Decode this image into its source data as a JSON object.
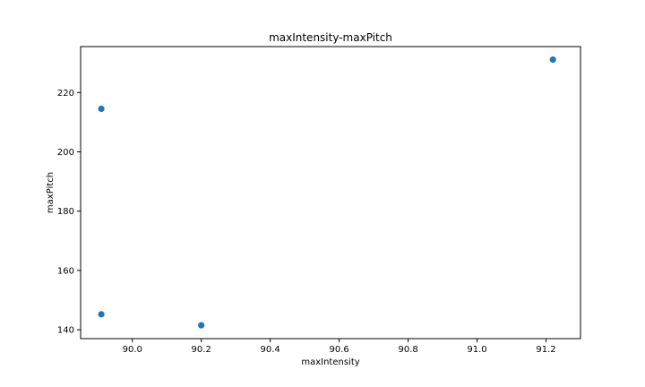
{
  "chart_data": {
    "type": "scatter",
    "title": "maxIntensity-maxPitch",
    "xlabel": "maxIntensity",
    "ylabel": "maxPitch",
    "xlim": [
      89.85,
      91.3
    ],
    "ylim": [
      137.0,
      235.5
    ],
    "xticks": [
      90.0,
      90.2,
      90.4,
      90.6,
      90.8,
      91.0,
      91.2
    ],
    "xtick_labels": [
      "90.0",
      "90.2",
      "90.4",
      "90.6",
      "90.8",
      "91.0",
      "91.2"
    ],
    "yticks": [
      140,
      160,
      180,
      200,
      220
    ],
    "ytick_labels": [
      "140",
      "160",
      "180",
      "200",
      "220"
    ],
    "grid": false,
    "series": [
      {
        "color": "#1f77b4",
        "points": [
          {
            "x": 89.91,
            "y": 214.5
          },
          {
            "x": 89.91,
            "y": 145.2
          },
          {
            "x": 90.2,
            "y": 141.5
          },
          {
            "x": 91.22,
            "y": 231.1
          }
        ]
      }
    ]
  }
}
